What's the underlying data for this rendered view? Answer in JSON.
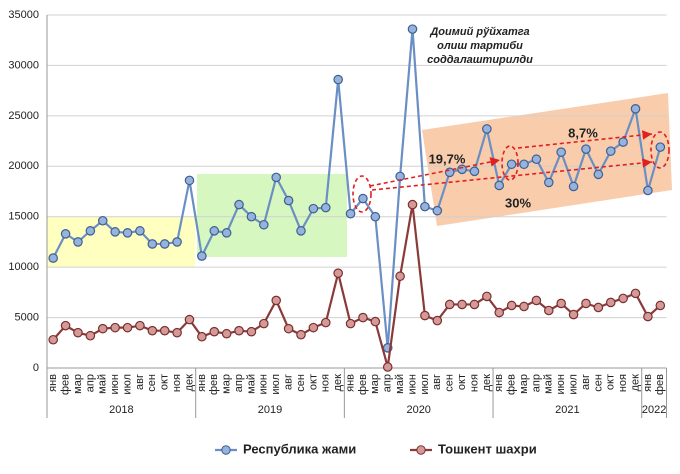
{
  "chart_data": {
    "type": "line",
    "categories": [
      "янв",
      "фев",
      "мар",
      "апр",
      "май",
      "июн",
      "июл",
      "авг",
      "сен",
      "окт",
      "ноя",
      "дек",
      "янв",
      "фев",
      "мар",
      "апр",
      "май",
      "июн",
      "июл",
      "авг",
      "сен",
      "окт",
      "ноя",
      "дек",
      "янв",
      "фев",
      "мар",
      "апр",
      "май",
      "июн",
      "июл",
      "авг",
      "сен",
      "окт",
      "ноя",
      "дек",
      "янв",
      "фев",
      "мар",
      "апр",
      "май",
      "июн",
      "июл",
      "авг",
      "сен",
      "окт",
      "ноя",
      "дек",
      "янв",
      "фев"
    ],
    "x_groups": [
      {
        "label": "2018",
        "span": 12
      },
      {
        "label": "2019",
        "span": 12
      },
      {
        "label": "2020",
        "span": 12
      },
      {
        "label": "2021",
        "span": 12
      },
      {
        "label": "2022",
        "span": 2
      }
    ],
    "series": [
      {
        "name": "Республика жами",
        "color": "#6a8fc4",
        "marker_fill": "#95b3dc",
        "marker_stroke": "#3f5f8f",
        "values": [
          10900,
          13300,
          12500,
          13600,
          14600,
          13500,
          13400,
          13600,
          12300,
          12300,
          12500,
          18600,
          11100,
          13600,
          13400,
          16200,
          15000,
          14200,
          18900,
          16600,
          13600,
          15800,
          15900,
          28600,
          15300,
          16800,
          15000,
          2000,
          19000,
          33600,
          16000,
          15600,
          19400,
          19700,
          19500,
          23700,
          18100,
          20200,
          20200,
          20700,
          18400,
          21400,
          18000,
          21700,
          19200,
          21500,
          22400,
          25700,
          17600,
          21900
        ]
      },
      {
        "name": "Тошкент шахри",
        "color": "#8b3a3a",
        "marker_fill": "#d39a98",
        "marker_stroke": "#7a2f2f",
        "values": [
          2800,
          4200,
          3500,
          3200,
          3900,
          4000,
          4000,
          4200,
          3700,
          3700,
          3500,
          4800,
          3100,
          3600,
          3400,
          3700,
          3600,
          4400,
          6700,
          3900,
          3300,
          4000,
          4500,
          9400,
          4400,
          5000,
          4600,
          100,
          9100,
          16200,
          5200,
          4700,
          6300,
          6300,
          6300,
          7100,
          5500,
          6200,
          6100,
          6700,
          5700,
          6400,
          5300,
          6400,
          6000,
          6500,
          6900,
          7400,
          5100,
          6200
        ]
      }
    ],
    "ylim": [
      0,
      35000
    ],
    "yticks": [
      0,
      5000,
      10000,
      15000,
      20000,
      25000,
      30000,
      35000
    ],
    "grid": true,
    "legend_position": "bottom",
    "annotations": {
      "note": [
        "Доимий рўйхатга",
        "олиш тартиби",
        "соддалаштирилди"
      ],
      "growth_1": "19,7%",
      "growth_2": "8,7%",
      "growth_3": "30%"
    }
  }
}
